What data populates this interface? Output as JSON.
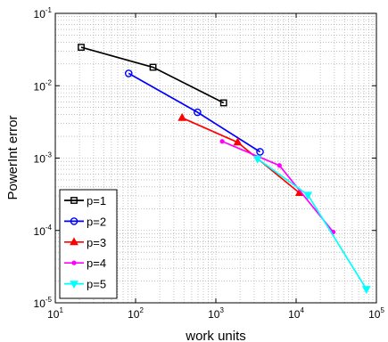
{
  "chart_data": {
    "type": "line",
    "title": "",
    "xlabel": "work units",
    "ylabel": "PowerInt error",
    "x_scale": "log",
    "y_scale": "log",
    "xlim": [
      10,
      100000
    ],
    "ylim": [
      1e-05,
      0.1
    ],
    "grid": true,
    "grid_style": "dotted, minor and major",
    "legend_position": "bottom-left",
    "x_ticks": [
      {
        "base": "10",
        "exp": "1"
      },
      {
        "base": "10",
        "exp": "2"
      },
      {
        "base": "10",
        "exp": "3"
      },
      {
        "base": "10",
        "exp": "4"
      },
      {
        "base": "10",
        "exp": "5"
      }
    ],
    "y_ticks": [
      {
        "base": "10",
        "exp": "-5"
      },
      {
        "base": "10",
        "exp": "-4"
      },
      {
        "base": "10",
        "exp": "-3"
      },
      {
        "base": "10",
        "exp": "-2"
      },
      {
        "base": "10",
        "exp": "-1"
      }
    ],
    "series": [
      {
        "name": "p=1",
        "color": "#000000",
        "marker": "square",
        "x": [
          21,
          165,
          1250
        ],
        "y": [
          0.034,
          0.018,
          0.0058
        ]
      },
      {
        "name": "p=2",
        "color": "#0000ff",
        "marker": "circle",
        "x": [
          82,
          590,
          3550
        ],
        "y": [
          0.0148,
          0.0043,
          0.00122
        ]
      },
      {
        "name": "p=3",
        "color": "#ff0000",
        "marker": "triangle-up",
        "x": [
          380,
          1870,
          11000
        ],
        "y": [
          0.0036,
          0.00165,
          0.00033
        ]
      },
      {
        "name": "p=4",
        "color": "#ff00ff",
        "marker": "point",
        "x": [
          1200,
          6200,
          29000
        ],
        "y": [
          0.0017,
          0.00079,
          9.5e-05
        ]
      },
      {
        "name": "p=5",
        "color": "#00ffff",
        "marker": "triangle-down",
        "x": [
          3300,
          14000,
          75000
        ],
        "y": [
          0.00098,
          0.00031,
          1.55e-05
        ]
      }
    ]
  }
}
